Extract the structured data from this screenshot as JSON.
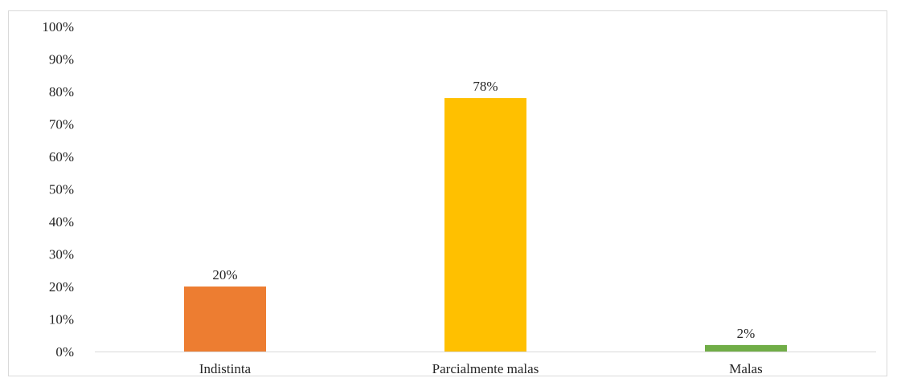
{
  "chart_data": {
    "type": "bar",
    "categories": [
      "Indistinta",
      "Parcialmente malas",
      "Malas"
    ],
    "values": [
      20,
      78,
      2
    ],
    "data_labels": [
      "20%",
      "78%",
      "2%"
    ],
    "colors": [
      "#ED7D31",
      "#FFC000",
      "#70AD47"
    ],
    "ylim": [
      0,
      100
    ],
    "yticks": [
      "0%",
      "10%",
      "20%",
      "30%",
      "40%",
      "50%",
      "60%",
      "70%",
      "80%",
      "90%",
      "100%"
    ],
    "ytick_values": [
      0,
      10,
      20,
      30,
      40,
      50,
      60,
      70,
      80,
      90,
      100
    ],
    "grid": false,
    "legend": false
  }
}
